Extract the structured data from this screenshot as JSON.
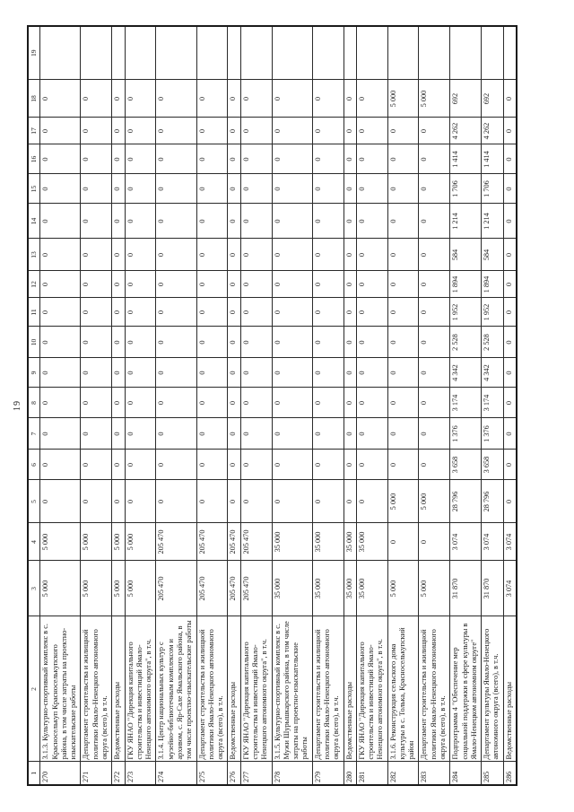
{
  "page_number": "19",
  "table": {
    "column_headers": [
      "1",
      "2",
      "3",
      "4",
      "5",
      "6",
      "7",
      "8",
      "9",
      "10",
      "11",
      "12",
      "13",
      "14",
      "15",
      "16",
      "17",
      "18",
      "19"
    ],
    "rows": [
      {
        "num": "270",
        "description": "3.1.3. Культурно-спортивный комплекс в с. Красноселькуп Красноселькупского района, в том числе затраты на проектно-изыскательские работы",
        "values": [
          "5 000",
          "5 000",
          "0",
          "0",
          "0",
          "0",
          "0",
          "0",
          "0",
          "0",
          "0",
          "0",
          "0",
          "0",
          "0",
          "0",
          ""
        ]
      },
      {
        "num": "271",
        "description": "Департамент строительства и жилищной политики Ямало-Ненецкого автономного округа (всего), в т.ч.",
        "values": [
          "5 000",
          "5 000",
          "0",
          "0",
          "0",
          "0",
          "0",
          "0",
          "0",
          "0",
          "0",
          "0",
          "0",
          "0",
          "0",
          "0",
          ""
        ]
      },
      {
        "num": "272",
        "description": "Ведомственные расходы",
        "values": [
          "5 000",
          "5 000",
          "0",
          "0",
          "0",
          "0",
          "0",
          "0",
          "0",
          "0",
          "0",
          "0",
          "0",
          "0",
          "0",
          "0",
          ""
        ]
      },
      {
        "num": "273",
        "description": "ГКУ ЯНАО \"Дирекция капитального строительства и инвестиций Ямало-Ненецкого автономного округа\", в т.ч.",
        "values": [
          "5 000",
          "5 000",
          "0",
          "0",
          "0",
          "0",
          "0",
          "0",
          "0",
          "0",
          "0",
          "0",
          "0",
          "0",
          "0",
          "0",
          ""
        ]
      },
      {
        "num": "274",
        "description": "3.1.4. Центр национальных культур с музейно-библиотечным комплексом и архивом, с. Яр-Сале Ямальского района, в том числе проектно-изыскательские работы",
        "values": [
          "205 470",
          "205 470",
          "0",
          "0",
          "0",
          "0",
          "0",
          "0",
          "0",
          "0",
          "0",
          "0",
          "0",
          "0",
          "0",
          "0",
          ""
        ]
      },
      {
        "num": "275",
        "description": "Департамент строительства и жилищной политики Ямало-Ненецкого автономного округа (всего), в т.ч.",
        "values": [
          "205 470",
          "205 470",
          "0",
          "0",
          "0",
          "0",
          "0",
          "0",
          "0",
          "0",
          "0",
          "0",
          "0",
          "0",
          "0",
          "0",
          ""
        ]
      },
      {
        "num": "276",
        "description": "Ведомственные расходы",
        "values": [
          "205 470",
          "205 470",
          "0",
          "0",
          "0",
          "0",
          "0",
          "0",
          "0",
          "0",
          "0",
          "0",
          "0",
          "0",
          "0",
          "0",
          ""
        ]
      },
      {
        "num": "277",
        "description": "ГКУ ЯНАО \"Дирекция капитального строительства и инвестиций Ямало-Ненецкого автономного округа\", в т.ч.",
        "values": [
          "205 470",
          "205 470",
          "0",
          "0",
          "0",
          "0",
          "0",
          "0",
          "0",
          "0",
          "0",
          "0",
          "0",
          "0",
          "0",
          "0",
          ""
        ]
      },
      {
        "num": "278",
        "description": "3.1.5. Культурно-спортивный комплекс в с. Мужи Шурышкарского района, в том числе затраты на проектно-изыскательские работы",
        "values": [
          "35 000",
          "35 000",
          "0",
          "0",
          "0",
          "0",
          "0",
          "0",
          "0",
          "0",
          "0",
          "0",
          "0",
          "0",
          "0",
          "0",
          ""
        ]
      },
      {
        "num": "279",
        "description": "Департамент строительства и жилищной политики Ямало-Ненецкого автономного округа (всего), в т.ч.",
        "values": [
          "35 000",
          "35 000",
          "0",
          "0",
          "0",
          "0",
          "0",
          "0",
          "0",
          "0",
          "0",
          "0",
          "0",
          "0",
          "0",
          "0",
          ""
        ]
      },
      {
        "num": "280",
        "description": "Ведомственные расходы",
        "values": [
          "35 000",
          "35 000",
          "0",
          "0",
          "0",
          "0",
          "0",
          "0",
          "0",
          "0",
          "0",
          "0",
          "0",
          "0",
          "0",
          "0",
          ""
        ]
      },
      {
        "num": "281",
        "description": "ГКУ ЯНАО \"Дирекция капитального строительства и инвестиций Ямало-Ненецкого автономного округа\", в т.ч.",
        "values": [
          "35 000",
          "35 000",
          "0",
          "0",
          "0",
          "0",
          "0",
          "0",
          "0",
          "0",
          "0",
          "0",
          "0",
          "0",
          "0",
          "0",
          ""
        ]
      },
      {
        "num": "282",
        "description": "3.1.6. Реконструкция сельского дома культуры в с. Толька, Красноселькупский район",
        "values": [
          "5 000",
          "0",
          "5 000",
          "0",
          "0",
          "0",
          "0",
          "0",
          "0",
          "0",
          "0",
          "0",
          "0",
          "0",
          "0",
          "5 000",
          ""
        ]
      },
      {
        "num": "283",
        "description": "Департамент строительства и жилищной политики Ямало-Ненецкого автономного округа (всего), в т.ч.",
        "values": [
          "5 000",
          "0",
          "5 000",
          "0",
          "0",
          "0",
          "0",
          "0",
          "0",
          "0",
          "0",
          "0",
          "0",
          "0",
          "0",
          "5 000",
          ""
        ]
      },
      {
        "num": "284",
        "description": "Подпрограмма 4 \"Обеспечение мер социальной поддержки в сфере культуры в Ямало-Ненецком автономном округе\"",
        "values": [
          "31 870",
          "3 074",
          "28 796",
          "3 658",
          "1 376",
          "3 174",
          "4 342",
          "2 528",
          "1 952",
          "1 894",
          "584",
          "1 214",
          "1 706",
          "1 414",
          "4 262",
          "692",
          ""
        ]
      },
      {
        "num": "285",
        "description": "Департамент культуры Ямало-Ненецкого автономного округа (всего), в т.ч.",
        "values": [
          "31 870",
          "3 074",
          "28 796",
          "3 658",
          "1 376",
          "3 174",
          "4 342",
          "2 528",
          "1 952",
          "1 894",
          "584",
          "1 214",
          "1 706",
          "1 414",
          "4 262",
          "692",
          ""
        ]
      },
      {
        "num": "286",
        "description": "Ведомственные расходы",
        "values": [
          "3 074",
          "3 074",
          "0",
          "0",
          "0",
          "0",
          "0",
          "0",
          "0",
          "0",
          "0",
          "0",
          "0",
          "0",
          "0",
          "0",
          ""
        ]
      }
    ]
  }
}
